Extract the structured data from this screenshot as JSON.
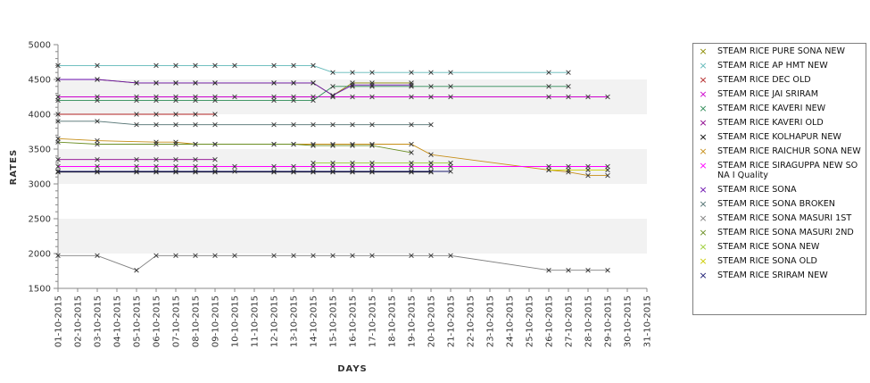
{
  "chart_data": {
    "type": "line",
    "xlabel": "DAYS",
    "ylabel": "RATES",
    "ylim": [
      1500,
      5000
    ],
    "yticks": [
      1500,
      2000,
      2500,
      3000,
      3500,
      4000,
      4500,
      5000
    ],
    "categories": [
      "01-10-2015",
      "02-10-2015",
      "03-10-2015",
      "04-10-2015",
      "05-10-2015",
      "06-10-2015",
      "07-10-2015",
      "08-10-2015",
      "09-10-2015",
      "10-10-2015",
      "11-10-2015",
      "12-10-2015",
      "13-10-2015",
      "14-10-2015",
      "15-10-2015",
      "16-10-2015",
      "17-10-2015",
      "18-10-2015",
      "19-10-2015",
      "20-10-2015",
      "21-10-2015",
      "22-10-2015",
      "23-10-2015",
      "24-10-2015",
      "25-10-2015",
      "26-10-2015",
      "27-10-2015",
      "28-10-2015",
      "29-10-2015",
      "30-10-2015",
      "31-10-2015"
    ],
    "grid": "alternating horizontal bands",
    "legend_position": "right",
    "series": [
      {
        "name": " STEAM RICE PURE SONA NEW",
        "color": "#8b8b00",
        "points": [
          [
            "01-10-2015",
            4500
          ],
          [
            "03-10-2015",
            4500
          ],
          [
            "05-10-2015",
            4450
          ],
          [
            "06-10-2015",
            4450
          ],
          [
            "07-10-2015",
            4450
          ],
          [
            "08-10-2015",
            4450
          ],
          [
            "09-10-2015",
            4450
          ],
          [
            "12-10-2015",
            4450
          ],
          [
            "13-10-2015",
            4450
          ],
          [
            "14-10-2015",
            4450
          ],
          [
            "15-10-2015",
            4270
          ],
          [
            "16-10-2015",
            4450
          ],
          [
            "17-10-2015",
            4450
          ],
          [
            "19-10-2015",
            4450
          ]
        ]
      },
      {
        "name": "STEAM RICE AP HMT NEW",
        "color": "#5fb7b7",
        "points": [
          [
            "01-10-2015",
            4700
          ],
          [
            "03-10-2015",
            4700
          ],
          [
            "06-10-2015",
            4700
          ],
          [
            "07-10-2015",
            4700
          ],
          [
            "08-10-2015",
            4700
          ],
          [
            "09-10-2015",
            4700
          ],
          [
            "10-10-2015",
            4700
          ],
          [
            "12-10-2015",
            4700
          ],
          [
            "13-10-2015",
            4700
          ],
          [
            "14-10-2015",
            4700
          ],
          [
            "15-10-2015",
            4600
          ],
          [
            "16-10-2015",
            4600
          ],
          [
            "17-10-2015",
            4600
          ],
          [
            "19-10-2015",
            4600
          ],
          [
            "20-10-2015",
            4600
          ],
          [
            "21-10-2015",
            4600
          ],
          [
            "26-10-2015",
            4600
          ],
          [
            "27-10-2015",
            4600
          ]
        ]
      },
      {
        "name": "STEAM RICE DEC OLD",
        "color": "#b22222",
        "points": [
          [
            "01-10-2015",
            4000
          ],
          [
            "05-10-2015",
            4000
          ],
          [
            "06-10-2015",
            4000
          ],
          [
            "07-10-2015",
            4000
          ],
          [
            "08-10-2015",
            4000
          ],
          [
            "09-10-2015",
            4000
          ]
        ]
      },
      {
        "name": "STEAM RICE JAI SRIRAM",
        "color": "#cc00cc",
        "points": [
          [
            "01-10-2015",
            4250
          ],
          [
            "03-10-2015",
            4250
          ],
          [
            "05-10-2015",
            4250
          ],
          [
            "06-10-2015",
            4250
          ],
          [
            "07-10-2015",
            4250
          ],
          [
            "08-10-2015",
            4250
          ],
          [
            "09-10-2015",
            4250
          ],
          [
            "10-10-2015",
            4250
          ],
          [
            "12-10-2015",
            4250
          ],
          [
            "13-10-2015",
            4250
          ],
          [
            "14-10-2015",
            4250
          ],
          [
            "15-10-2015",
            4250
          ],
          [
            "16-10-2015",
            4250
          ],
          [
            "17-10-2015",
            4250
          ],
          [
            "19-10-2015",
            4250
          ],
          [
            "20-10-2015",
            4250
          ],
          [
            "21-10-2015",
            4250
          ],
          [
            "26-10-2015",
            4250
          ],
          [
            "27-10-2015",
            4250
          ],
          [
            "28-10-2015",
            4250
          ],
          [
            "29-10-2015",
            4250
          ]
        ]
      },
      {
        "name": "STEAM RICE KAVERI NEW",
        "color": "#2e8b57",
        "points": [
          [
            "01-10-2015",
            4200
          ],
          [
            "03-10-2015",
            4200
          ],
          [
            "05-10-2015",
            4200
          ],
          [
            "06-10-2015",
            4200
          ],
          [
            "07-10-2015",
            4200
          ],
          [
            "08-10-2015",
            4200
          ],
          [
            "09-10-2015",
            4200
          ],
          [
            "12-10-2015",
            4200
          ],
          [
            "13-10-2015",
            4200
          ],
          [
            "14-10-2015",
            4200
          ],
          [
            "15-10-2015",
            4400
          ],
          [
            "16-10-2015",
            4400
          ],
          [
            "17-10-2015",
            4400
          ],
          [
            "19-10-2015",
            4400
          ],
          [
            "20-10-2015",
            4400
          ],
          [
            "21-10-2015",
            4400
          ],
          [
            "26-10-2015",
            4400
          ],
          [
            "27-10-2015",
            4400
          ]
        ]
      },
      {
        "name": "STEAM RICE KAVERI OLD",
        "color": "#8b008b",
        "points": [
          [
            "01-10-2015",
            3350
          ],
          [
            "03-10-2015",
            3350
          ],
          [
            "05-10-2015",
            3350
          ],
          [
            "06-10-2015",
            3350
          ],
          [
            "07-10-2015",
            3350
          ],
          [
            "08-10-2015",
            3350
          ],
          [
            "09-10-2015",
            3350
          ]
        ]
      },
      {
        "name": "STEAM RICE KOLHAPUR NEW",
        "color": "#000000",
        "points": [
          [
            "01-10-2015",
            3170
          ],
          [
            "03-10-2015",
            3170
          ],
          [
            "05-10-2015",
            3170
          ],
          [
            "06-10-2015",
            3170
          ],
          [
            "07-10-2015",
            3170
          ],
          [
            "08-10-2015",
            3170
          ],
          [
            "09-10-2015",
            3170
          ],
          [
            "12-10-2015",
            3170
          ],
          [
            "13-10-2015",
            3170
          ],
          [
            "14-10-2015",
            3170
          ],
          [
            "15-10-2015",
            3170
          ],
          [
            "16-10-2015",
            3170
          ],
          [
            "17-10-2015",
            3170
          ],
          [
            "19-10-2015",
            3170
          ],
          [
            "20-10-2015",
            3170
          ]
        ]
      },
      {
        "name": "STEAM RICE RAICHUR SONA NEW",
        "color": "#c68e17",
        "points": [
          [
            "01-10-2015",
            3650
          ],
          [
            "03-10-2015",
            3620
          ],
          [
            "06-10-2015",
            3600
          ],
          [
            "07-10-2015",
            3600
          ],
          [
            "08-10-2015",
            3570
          ],
          [
            "09-10-2015",
            3570
          ],
          [
            "12-10-2015",
            3570
          ],
          [
            "13-10-2015",
            3570
          ],
          [
            "14-10-2015",
            3570
          ],
          [
            "15-10-2015",
            3570
          ],
          [
            "16-10-2015",
            3570
          ],
          [
            "17-10-2015",
            3570
          ],
          [
            "19-10-2015",
            3570
          ],
          [
            "20-10-2015",
            3420
          ],
          [
            "26-10-2015",
            3200
          ],
          [
            "27-10-2015",
            3170
          ],
          [
            "28-10-2015",
            3120
          ],
          [
            "29-10-2015",
            3120
          ]
        ]
      },
      {
        "name": "STEAM RICE SIRAGUPPA NEW SONA I Quality",
        "color": "#ff00ff",
        "points": [
          [
            "01-10-2015",
            3250
          ],
          [
            "03-10-2015",
            3250
          ],
          [
            "05-10-2015",
            3250
          ],
          [
            "06-10-2015",
            3250
          ],
          [
            "07-10-2015",
            3250
          ],
          [
            "08-10-2015",
            3250
          ],
          [
            "09-10-2015",
            3250
          ],
          [
            "10-10-2015",
            3250
          ],
          [
            "12-10-2015",
            3250
          ],
          [
            "13-10-2015",
            3250
          ],
          [
            "14-10-2015",
            3250
          ],
          [
            "15-10-2015",
            3250
          ],
          [
            "16-10-2015",
            3250
          ],
          [
            "17-10-2015",
            3250
          ],
          [
            "19-10-2015",
            3250
          ],
          [
            "20-10-2015",
            3250
          ],
          [
            "21-10-2015",
            3250
          ],
          [
            "26-10-2015",
            3250
          ],
          [
            "27-10-2015",
            3250
          ],
          [
            "28-10-2015",
            3250
          ],
          [
            "29-10-2015",
            3250
          ]
        ]
      },
      {
        "name": "STEAM RICE SONA",
        "color": "#6a0dad",
        "points": [
          [
            "01-10-2015",
            4500
          ],
          [
            "03-10-2015",
            4500
          ],
          [
            "05-10-2015",
            4450
          ],
          [
            "06-10-2015",
            4450
          ],
          [
            "07-10-2015",
            4450
          ],
          [
            "08-10-2015",
            4450
          ],
          [
            "09-10-2015",
            4450
          ],
          [
            "12-10-2015",
            4450
          ],
          [
            "13-10-2015",
            4450
          ],
          [
            "14-10-2015",
            4450
          ],
          [
            "15-10-2015",
            4270
          ],
          [
            "16-10-2015",
            4420
          ],
          [
            "17-10-2015",
            4420
          ],
          [
            "19-10-2015",
            4420
          ]
        ]
      },
      {
        "name": "STEAM RICE SONA BROKEN",
        "color": "#4f6f6f",
        "points": [
          [
            "01-10-2015",
            3900
          ],
          [
            "03-10-2015",
            3900
          ],
          [
            "05-10-2015",
            3850
          ],
          [
            "06-10-2015",
            3850
          ],
          [
            "07-10-2015",
            3850
          ],
          [
            "08-10-2015",
            3850
          ],
          [
            "09-10-2015",
            3850
          ],
          [
            "12-10-2015",
            3850
          ],
          [
            "13-10-2015",
            3850
          ],
          [
            "14-10-2015",
            3850
          ],
          [
            "15-10-2015",
            3850
          ],
          [
            "16-10-2015",
            3850
          ],
          [
            "17-10-2015",
            3850
          ],
          [
            "19-10-2015",
            3850
          ],
          [
            "20-10-2015",
            3850
          ]
        ]
      },
      {
        "name": "STEAM RICE SONA MASURI 1ST",
        "color": "#808080",
        "points": [
          [
            "01-10-2015",
            1970
          ],
          [
            "03-10-2015",
            1970
          ],
          [
            "05-10-2015",
            1760
          ],
          [
            "06-10-2015",
            1970
          ],
          [
            "07-10-2015",
            1970
          ],
          [
            "08-10-2015",
            1970
          ],
          [
            "09-10-2015",
            1970
          ],
          [
            "10-10-2015",
            1970
          ],
          [
            "12-10-2015",
            1970
          ],
          [
            "13-10-2015",
            1970
          ],
          [
            "14-10-2015",
            1970
          ],
          [
            "15-10-2015",
            1970
          ],
          [
            "16-10-2015",
            1970
          ],
          [
            "17-10-2015",
            1970
          ],
          [
            "19-10-2015",
            1970
          ],
          [
            "20-10-2015",
            1970
          ],
          [
            "21-10-2015",
            1970
          ],
          [
            "26-10-2015",
            1760
          ],
          [
            "27-10-2015",
            1760
          ],
          [
            "28-10-2015",
            1760
          ],
          [
            "29-10-2015",
            1760
          ]
        ]
      },
      {
        "name": "STEAM RICE SONA MASURI 2ND",
        "color": "#6b8e23",
        "points": [
          [
            "01-10-2015",
            3600
          ],
          [
            "03-10-2015",
            3570
          ],
          [
            "06-10-2015",
            3570
          ],
          [
            "07-10-2015",
            3570
          ],
          [
            "08-10-2015",
            3570
          ],
          [
            "09-10-2015",
            3570
          ],
          [
            "12-10-2015",
            3570
          ],
          [
            "13-10-2015",
            3570
          ],
          [
            "14-10-2015",
            3550
          ],
          [
            "15-10-2015",
            3550
          ],
          [
            "16-10-2015",
            3550
          ],
          [
            "17-10-2015",
            3550
          ],
          [
            "19-10-2015",
            3450
          ]
        ]
      },
      {
        "name": "STEAM RICE SONA NEW",
        "color": "#9acd32",
        "points": [
          [
            "14-10-2015",
            3300
          ],
          [
            "15-10-2015",
            3300
          ],
          [
            "16-10-2015",
            3300
          ],
          [
            "17-10-2015",
            3300
          ],
          [
            "19-10-2015",
            3300
          ],
          [
            "20-10-2015",
            3300
          ],
          [
            "21-10-2015",
            3300
          ]
        ]
      },
      {
        "name": "STEAM RICE SONA OLD",
        "color": "#cccc00",
        "points": [
          [
            "26-10-2015",
            3200
          ],
          [
            "27-10-2015",
            3200
          ],
          [
            "28-10-2015",
            3200
          ],
          [
            "29-10-2015",
            3200
          ]
        ]
      },
      {
        "name": "STEAM RICE SRIRAM NEW",
        "color": "#191970",
        "points": [
          [
            "01-10-2015",
            3180
          ],
          [
            "03-10-2015",
            3180
          ],
          [
            "05-10-2015",
            3180
          ],
          [
            "06-10-2015",
            3180
          ],
          [
            "07-10-2015",
            3180
          ],
          [
            "08-10-2015",
            3180
          ],
          [
            "09-10-2015",
            3180
          ],
          [
            "10-10-2015",
            3180
          ],
          [
            "12-10-2015",
            3180
          ],
          [
            "13-10-2015",
            3180
          ],
          [
            "14-10-2015",
            3180
          ],
          [
            "15-10-2015",
            3180
          ],
          [
            "16-10-2015",
            3180
          ],
          [
            "17-10-2015",
            3180
          ],
          [
            "19-10-2015",
            3180
          ],
          [
            "20-10-2015",
            3180
          ],
          [
            "21-10-2015",
            3180
          ]
        ]
      }
    ]
  }
}
